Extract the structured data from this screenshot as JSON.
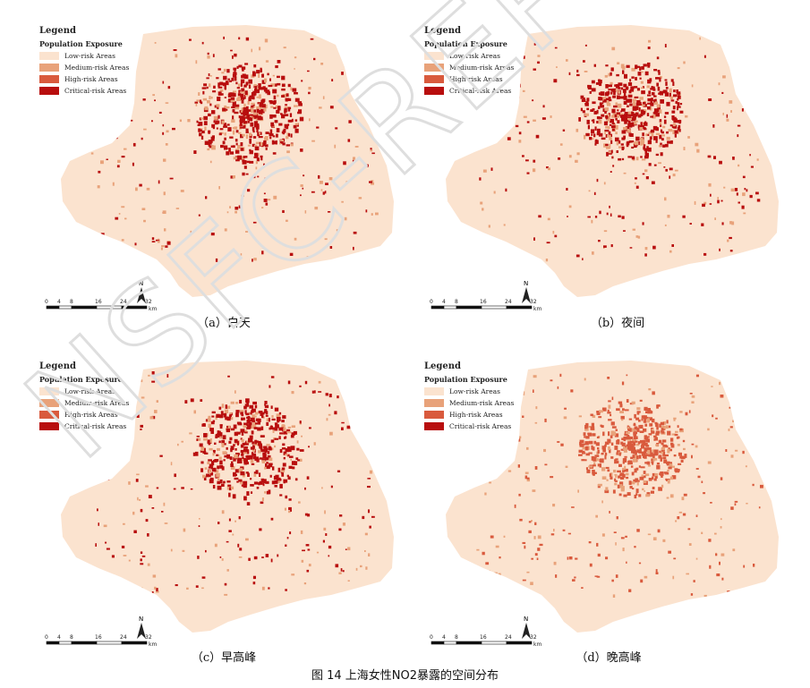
{
  "figure_caption": "图 14 上海女性NO2暴露的空间分布",
  "watermark": "NSFC-REPORT",
  "colors": {
    "low": "#fbe3cf",
    "medium": "#e8a27a",
    "high": "#d95a3d",
    "critical": "#b80e0e"
  },
  "legend": {
    "title": "Legend",
    "subtitle": "Population Exposure",
    "items": [
      "Low-risk Areas",
      "Medium-risk Areas",
      "High-risk Areas",
      "Critical-risk Areas"
    ]
  },
  "scale": {
    "ticks": [
      "0",
      "4",
      "8",
      "16",
      "24",
      "32"
    ],
    "unit": "km",
    "north": "N"
  },
  "panels": [
    {
      "caption": "（a）白天",
      "dominant": "critical"
    },
    {
      "caption": "（b）夜间",
      "dominant": "critical"
    },
    {
      "caption": "（c）早高峰",
      "dominant": "critical"
    },
    {
      "caption": "（d）晚高峰",
      "dominant": "high"
    }
  ]
}
